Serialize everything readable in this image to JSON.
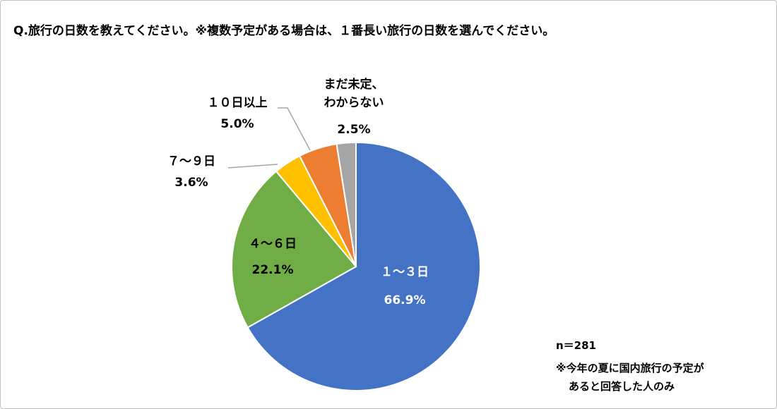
{
  "chart_data": {
    "type": "pie",
    "title": "Q.旅行の日数を教えてください。※複数予定がある場合は、１番長い旅行の日数を選んでください。",
    "categories": [
      "１～３日",
      "４～６日",
      "７～９日",
      "１０日以上",
      "まだ未定、\nわからない"
    ],
    "values": [
      66.9,
      22.1,
      3.6,
      5.0,
      2.5
    ],
    "value_labels": [
      "66.9%",
      "22.1%",
      "3.6%",
      "5.0%",
      "2.5%"
    ],
    "colors": [
      "#4472c4",
      "#70ad47",
      "#ffc000",
      "#ed7d31",
      "#a5a5a5"
    ],
    "notes": [
      "n＝281",
      "※今年の夏に国内旅行の予定が",
      "あると回答した人のみ"
    ]
  }
}
